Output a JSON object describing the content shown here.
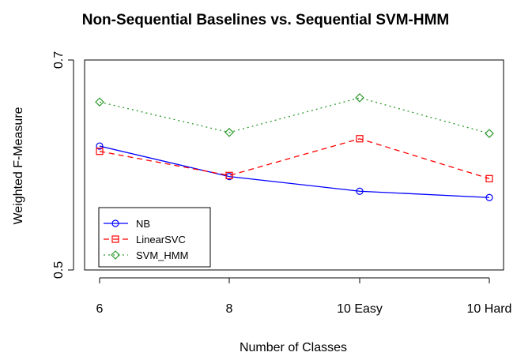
{
  "chart_data": {
    "type": "line",
    "title": "Non-Sequential Baselines vs. Sequential SVM-HMM",
    "xlabel": "Number of Classes",
    "ylabel": "Weighted F-Measure",
    "categories": [
      "6",
      "8",
      "10 Easy",
      "10 Hard"
    ],
    "ylim": [
      0.5,
      0.7
    ],
    "yticks": [
      0.5,
      0.7
    ],
    "grid": false,
    "legend_position": "bottom-left",
    "series": [
      {
        "name": "NB",
        "values": [
          0.618,
          0.589,
          0.575,
          0.569
        ],
        "color": "#0000ff",
        "dash": "solid",
        "marker": "circle"
      },
      {
        "name": "LinearSVC",
        "values": [
          0.613,
          0.59,
          0.625,
          0.587
        ],
        "color": "#ff0000",
        "dash": "dashed",
        "marker": "square"
      },
      {
        "name": "SVM_HMM",
        "values": [
          0.66,
          0.631,
          0.664,
          0.63
        ],
        "color": "#2e9a2e",
        "dash": "dotted",
        "marker": "diamond"
      }
    ]
  }
}
